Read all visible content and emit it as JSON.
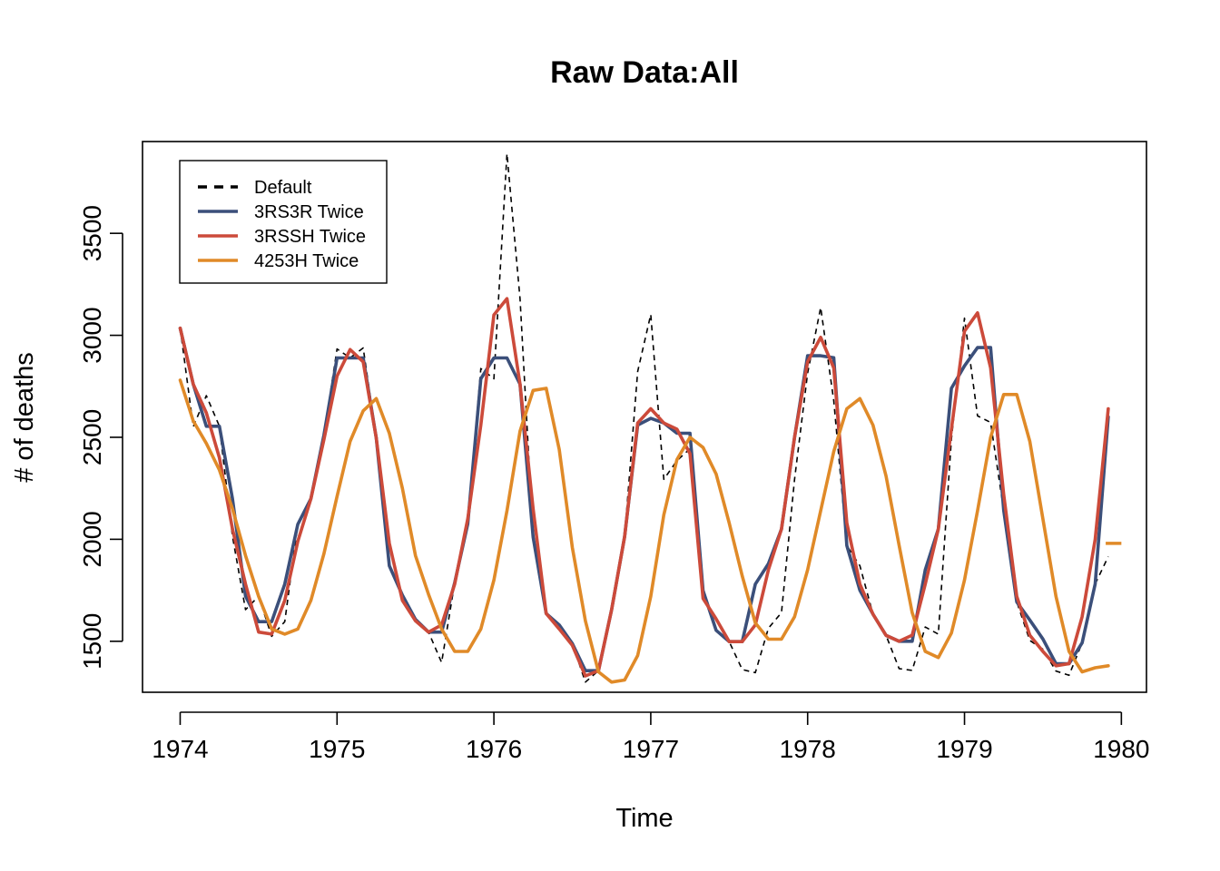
{
  "chart_data": {
    "type": "line",
    "title": "Raw Data:All",
    "xlabel": "Time",
    "ylabel": "# of deaths",
    "xlim": [
      1973.76,
      1980.16
    ],
    "ylim": [
      1250,
      3950
    ],
    "x_ticks": [
      1974,
      1975,
      1976,
      1977,
      1978,
      1979,
      1980
    ],
    "y_ticks": [
      1500,
      2000,
      2500,
      3000,
      3500
    ],
    "grid": false,
    "legend_position": "top-left",
    "x_start": 1974,
    "x_step": 0.0833333,
    "series": [
      {
        "name": "Default",
        "color": "#000000",
        "dash": true,
        "values": [
          3035,
          2552,
          2704,
          2554,
          2014,
          1655,
          1721,
          1524,
          1596,
          2074,
          2199,
          2512,
          2933,
          2889,
          2938,
          2497,
          1870,
          1726,
          1607,
          1545,
          1396,
          1787,
          2076,
          2837,
          2787,
          3891,
          3179,
          2011,
          1636,
          1580,
          1489,
          1300,
          1356,
          1653,
          2013,
          2823,
          3102,
          2294,
          2385,
          2444,
          1748,
          1554,
          1498,
          1361,
          1346,
          1564,
          1640,
          2293,
          2815,
          3137,
          2679,
          1969,
          1870,
          1633,
          1529,
          1366,
          1357,
          1570,
          1535,
          2491,
          3084,
          2605,
          2573,
          2143,
          1693,
          1504,
          1461,
          1354,
          1333,
          1492,
          1781,
          1915
        ]
      },
      {
        "name": "3RS3R Twice",
        "color": "#3b4f7a",
        "dash": false,
        "values": [
          3035,
          2760,
          2554,
          2554,
          2199,
          1721,
          1596,
          1596,
          1780,
          2074,
          2199,
          2512,
          2889,
          2889,
          2889,
          2497,
          1870,
          1726,
          1607,
          1545,
          1545,
          1787,
          2076,
          2787,
          2889,
          2889,
          2760,
          2011,
          1636,
          1580,
          1489,
          1356,
          1356,
          1653,
          2013,
          2560,
          2593,
          2570,
          2520,
          2520,
          1748,
          1554,
          1498,
          1498,
          1780,
          1880,
          2050,
          2500,
          2900,
          2900,
          2890,
          1969,
          1750,
          1633,
          1529,
          1500,
          1500,
          1850,
          2050,
          2740,
          2850,
          2940,
          2940,
          2143,
          1693,
          1604,
          1511,
          1390,
          1390,
          1492,
          1781,
          2600
        ]
      },
      {
        "name": "3RSSH Twice",
        "color": "#cc4a3a",
        "dash": false,
        "values": [
          3035,
          2760,
          2620,
          2400,
          2050,
          1780,
          1545,
          1535,
          1700,
          1990,
          2199,
          2490,
          2800,
          2930,
          2870,
          2497,
          1980,
          1700,
          1600,
          1545,
          1580,
          1780,
          2100,
          2560,
          3100,
          3180,
          2760,
          2150,
          1636,
          1560,
          1480,
          1330,
          1356,
          1653,
          2013,
          2570,
          2640,
          2570,
          2540,
          2420,
          1710,
          1610,
          1498,
          1498,
          1580,
          1850,
          2050,
          2500,
          2870,
          2990,
          2840,
          2080,
          1780,
          1633,
          1529,
          1500,
          1530,
          1780,
          2050,
          2540,
          3020,
          3110,
          2840,
          2220,
          1720,
          1530,
          1450,
          1380,
          1390,
          1620,
          2000,
          2640
        ]
      },
      {
        "name": "4253H Twice",
        "color": "#e08a28",
        "dash": false,
        "values": [
          2780,
          2580,
          2470,
          2340,
          2150,
          1920,
          1720,
          1560,
          1535,
          1560,
          1700,
          1930,
          2210,
          2480,
          2630,
          2690,
          2520,
          2250,
          1920,
          1730,
          1560,
          1450,
          1450,
          1560,
          1800,
          2140,
          2530,
          2730,
          2740,
          2440,
          1960,
          1600,
          1350,
          1300,
          1310,
          1430,
          1720,
          2120,
          2390,
          2500,
          2450,
          2320,
          2080,
          1820,
          1590,
          1510,
          1510,
          1620,
          1850,
          2140,
          2430,
          2640,
          2690,
          2560,
          2310,
          1970,
          1640,
          1450,
          1420,
          1540,
          1800,
          2140,
          2500,
          2710,
          2710,
          2480,
          2100,
          1720,
          1450,
          1350,
          1370,
          1380
        ]
      }
    ],
    "extra_segment": {
      "series": "4253H Twice",
      "x": [
        1979.9,
        1980.0
      ],
      "values": [
        1980,
        1980
      ]
    }
  }
}
